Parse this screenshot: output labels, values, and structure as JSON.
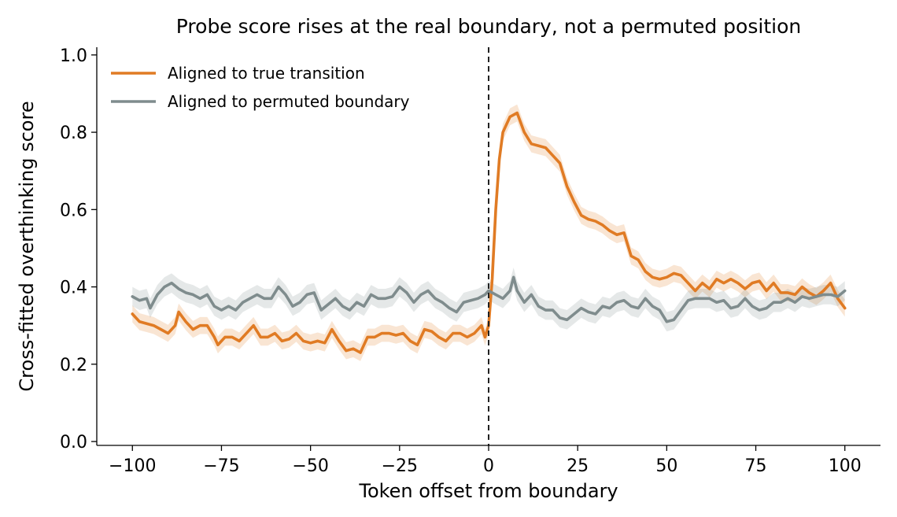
{
  "chart_data": {
    "type": "line",
    "title": "Probe score rises at the real boundary, not a permuted position",
    "xlabel": "Token offset from boundary",
    "ylabel": "Cross-fitted overthinking score",
    "xlim": [
      -110,
      110
    ],
    "ylim": [
      -0.01,
      1.02
    ],
    "x_ticks": [
      -100,
      -75,
      -50,
      -25,
      0,
      25,
      50,
      75,
      100
    ],
    "x_tick_labels": [
      "−100",
      "−75",
      "−50",
      "−25",
      "0",
      "25",
      "50",
      "75",
      "100"
    ],
    "y_ticks": [
      0.0,
      0.2,
      0.4,
      0.6,
      0.8,
      1.0
    ],
    "y_tick_labels": [
      "0.0",
      "0.2",
      "0.4",
      "0.6",
      "0.8",
      "1.0"
    ],
    "boundary_x": 0,
    "grid": false,
    "legend_position": "top-left",
    "series": [
      {
        "name": "Aligned to true transition",
        "color": "#e07b24",
        "band": 0.022,
        "points": [
          [
            -100,
            0.33
          ],
          [
            -98,
            0.31
          ],
          [
            -96,
            0.305
          ],
          [
            -94,
            0.3
          ],
          [
            -92,
            0.29
          ],
          [
            -90,
            0.28
          ],
          [
            -88,
            0.3
          ],
          [
            -87,
            0.335
          ],
          [
            -85,
            0.31
          ],
          [
            -83,
            0.29
          ],
          [
            -81,
            0.3
          ],
          [
            -79,
            0.3
          ],
          [
            -77,
            0.27
          ],
          [
            -76,
            0.25
          ],
          [
            -74,
            0.27
          ],
          [
            -72,
            0.27
          ],
          [
            -70,
            0.26
          ],
          [
            -68,
            0.28
          ],
          [
            -66,
            0.3
          ],
          [
            -64,
            0.27
          ],
          [
            -62,
            0.27
          ],
          [
            -60,
            0.28
          ],
          [
            -58,
            0.26
          ],
          [
            -56,
            0.265
          ],
          [
            -54,
            0.28
          ],
          [
            -52,
            0.26
          ],
          [
            -50,
            0.255
          ],
          [
            -48,
            0.26
          ],
          [
            -46,
            0.255
          ],
          [
            -44,
            0.29
          ],
          [
            -42,
            0.26
          ],
          [
            -40,
            0.235
          ],
          [
            -38,
            0.24
          ],
          [
            -36,
            0.23
          ],
          [
            -34,
            0.27
          ],
          [
            -32,
            0.27
          ],
          [
            -30,
            0.28
          ],
          [
            -28,
            0.28
          ],
          [
            -26,
            0.275
          ],
          [
            -24,
            0.28
          ],
          [
            -22,
            0.26
          ],
          [
            -20,
            0.25
          ],
          [
            -18,
            0.29
          ],
          [
            -16,
            0.285
          ],
          [
            -14,
            0.27
          ],
          [
            -12,
            0.26
          ],
          [
            -10,
            0.28
          ],
          [
            -8,
            0.28
          ],
          [
            -6,
            0.27
          ],
          [
            -4,
            0.28
          ],
          [
            -2,
            0.3
          ],
          [
            -1,
            0.27
          ],
          [
            0,
            0.3
          ],
          [
            1,
            0.42
          ],
          [
            2,
            0.6
          ],
          [
            3,
            0.73
          ],
          [
            4,
            0.8
          ],
          [
            5,
            0.82
          ],
          [
            6,
            0.84
          ],
          [
            8,
            0.85
          ],
          [
            10,
            0.8
          ],
          [
            12,
            0.77
          ],
          [
            14,
            0.765
          ],
          [
            16,
            0.76
          ],
          [
            18,
            0.74
          ],
          [
            20,
            0.72
          ],
          [
            22,
            0.66
          ],
          [
            24,
            0.62
          ],
          [
            26,
            0.585
          ],
          [
            28,
            0.575
          ],
          [
            30,
            0.57
          ],
          [
            32,
            0.56
          ],
          [
            34,
            0.545
          ],
          [
            36,
            0.535
          ],
          [
            38,
            0.54
          ],
          [
            39,
            0.51
          ],
          [
            40,
            0.48
          ],
          [
            42,
            0.47
          ],
          [
            44,
            0.44
          ],
          [
            46,
            0.425
          ],
          [
            48,
            0.42
          ],
          [
            50,
            0.425
          ],
          [
            52,
            0.435
          ],
          [
            54,
            0.43
          ],
          [
            56,
            0.41
          ],
          [
            58,
            0.39
          ],
          [
            60,
            0.41
          ],
          [
            62,
            0.395
          ],
          [
            64,
            0.42
          ],
          [
            66,
            0.41
          ],
          [
            68,
            0.42
          ],
          [
            70,
            0.41
          ],
          [
            72,
            0.395
          ],
          [
            74,
            0.41
          ],
          [
            76,
            0.415
          ],
          [
            78,
            0.39
          ],
          [
            80,
            0.41
          ],
          [
            82,
            0.385
          ],
          [
            84,
            0.385
          ],
          [
            86,
            0.38
          ],
          [
            88,
            0.4
          ],
          [
            90,
            0.385
          ],
          [
            92,
            0.375
          ],
          [
            94,
            0.39
          ],
          [
            96,
            0.41
          ],
          [
            98,
            0.37
          ],
          [
            100,
            0.345
          ]
        ]
      },
      {
        "name": "Aligned to permuted boundary",
        "color": "#7f8c8d",
        "band": 0.025,
        "points": [
          [
            -100,
            0.375
          ],
          [
            -98,
            0.365
          ],
          [
            -96,
            0.37
          ],
          [
            -95,
            0.345
          ],
          [
            -93,
            0.38
          ],
          [
            -91,
            0.4
          ],
          [
            -89,
            0.41
          ],
          [
            -87,
            0.395
          ],
          [
            -85,
            0.385
          ],
          [
            -83,
            0.38
          ],
          [
            -81,
            0.37
          ],
          [
            -79,
            0.38
          ],
          [
            -77,
            0.35
          ],
          [
            -75,
            0.34
          ],
          [
            -73,
            0.35
          ],
          [
            -71,
            0.34
          ],
          [
            -69,
            0.36
          ],
          [
            -67,
            0.37
          ],
          [
            -65,
            0.38
          ],
          [
            -63,
            0.37
          ],
          [
            -61,
            0.37
          ],
          [
            -59,
            0.4
          ],
          [
            -57,
            0.38
          ],
          [
            -55,
            0.35
          ],
          [
            -53,
            0.36
          ],
          [
            -51,
            0.38
          ],
          [
            -49,
            0.385
          ],
          [
            -47,
            0.34
          ],
          [
            -45,
            0.355
          ],
          [
            -43,
            0.37
          ],
          [
            -41,
            0.35
          ],
          [
            -39,
            0.34
          ],
          [
            -37,
            0.36
          ],
          [
            -35,
            0.35
          ],
          [
            -33,
            0.38
          ],
          [
            -31,
            0.37
          ],
          [
            -29,
            0.37
          ],
          [
            -27,
            0.375
          ],
          [
            -25,
            0.4
          ],
          [
            -23,
            0.385
          ],
          [
            -21,
            0.36
          ],
          [
            -19,
            0.38
          ],
          [
            -17,
            0.39
          ],
          [
            -15,
            0.37
          ],
          [
            -13,
            0.36
          ],
          [
            -11,
            0.345
          ],
          [
            -9,
            0.335
          ],
          [
            -7,
            0.36
          ],
          [
            -5,
            0.365
          ],
          [
            -3,
            0.37
          ],
          [
            -1,
            0.38
          ],
          [
            0,
            0.39
          ],
          [
            2,
            0.38
          ],
          [
            4,
            0.37
          ],
          [
            6,
            0.39
          ],
          [
            7,
            0.425
          ],
          [
            8,
            0.39
          ],
          [
            10,
            0.36
          ],
          [
            12,
            0.38
          ],
          [
            14,
            0.35
          ],
          [
            16,
            0.34
          ],
          [
            18,
            0.34
          ],
          [
            20,
            0.32
          ],
          [
            22,
            0.315
          ],
          [
            24,
            0.33
          ],
          [
            26,
            0.345
          ],
          [
            28,
            0.335
          ],
          [
            30,
            0.33
          ],
          [
            32,
            0.35
          ],
          [
            34,
            0.345
          ],
          [
            36,
            0.36
          ],
          [
            38,
            0.365
          ],
          [
            40,
            0.35
          ],
          [
            42,
            0.345
          ],
          [
            44,
            0.37
          ],
          [
            46,
            0.35
          ],
          [
            48,
            0.34
          ],
          [
            50,
            0.31
          ],
          [
            52,
            0.315
          ],
          [
            54,
            0.34
          ],
          [
            56,
            0.365
          ],
          [
            58,
            0.37
          ],
          [
            60,
            0.37
          ],
          [
            62,
            0.37
          ],
          [
            64,
            0.36
          ],
          [
            66,
            0.365
          ],
          [
            68,
            0.345
          ],
          [
            70,
            0.35
          ],
          [
            72,
            0.37
          ],
          [
            74,
            0.35
          ],
          [
            76,
            0.34
          ],
          [
            78,
            0.345
          ],
          [
            80,
            0.36
          ],
          [
            82,
            0.36
          ],
          [
            84,
            0.37
          ],
          [
            86,
            0.36
          ],
          [
            88,
            0.375
          ],
          [
            90,
            0.37
          ],
          [
            92,
            0.375
          ],
          [
            94,
            0.38
          ],
          [
            96,
            0.38
          ],
          [
            98,
            0.375
          ],
          [
            100,
            0.39
          ]
        ]
      }
    ]
  }
}
